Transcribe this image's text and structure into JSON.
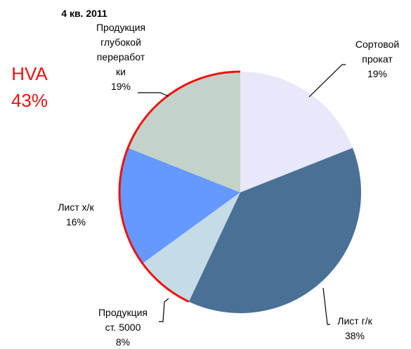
{
  "chart_data": {
    "type": "pie",
    "title": "4 кв. 2011",
    "categories": [
      [
        "Сортовой",
        "прокат"
      ],
      [
        "Лист г/к"
      ],
      [
        "Продукция",
        "ст. 5000"
      ],
      [
        "Лист х/к"
      ],
      [
        "Продукция",
        "глубокой",
        "переработ",
        "ки"
      ]
    ],
    "values": [
      19,
      38,
      8,
      16,
      19
    ],
    "value_labels": [
      "19%",
      "38%",
      "8%",
      "16%",
      "19%"
    ],
    "colors": [
      "#e8e8fa",
      "#4a7096",
      "#c5dbe6",
      "#6699ff",
      "#c4d3c9"
    ],
    "annotation": {
      "label": "HVA",
      "value": 43,
      "value_label": "43%",
      "color": "#ee1111"
    }
  }
}
